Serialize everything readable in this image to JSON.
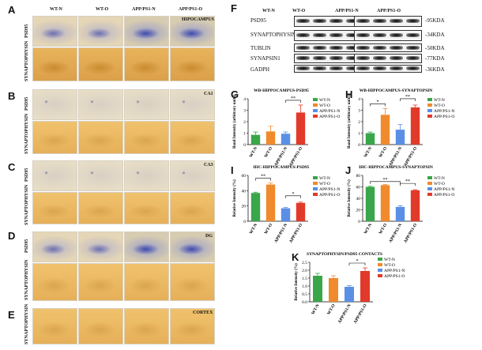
{
  "panel_letters": [
    "A",
    "B",
    "C",
    "D",
    "E",
    "F",
    "G",
    "H",
    "I",
    "J",
    "K"
  ],
  "ihc": {
    "columns": [
      "WT-N",
      "WT-O",
      "APP/PS1-N",
      "APP/PS1-O"
    ],
    "stain_psd95": "PSD95",
    "stain_syn": "SYNAPTOPHYSIN",
    "regions": {
      "A": "HIPOCAMPUS",
      "B": "CA1",
      "C": "CA3",
      "D": "DG",
      "E": "CORTEX"
    }
  },
  "western_blot": {
    "columns": [
      "WT-N",
      "WT-O",
      "APP/PS1-N",
      "APP/PS1-O"
    ],
    "proteins": [
      "PSD95",
      "SYNAPTOPHYSIN",
      "TUBLIN",
      "SYNAPSIN1",
      "GADPH"
    ],
    "sizes": [
      "-95KDA",
      "-34KDA",
      "-50KDA",
      "-77KDA",
      "-36KDA"
    ]
  },
  "legend": {
    "labels": [
      "WT-N",
      "WT-O",
      "APP/PS1-N",
      "APP/PS1-O"
    ],
    "colors": [
      "#3aa64a",
      "#f08a2c",
      "#5b8fe6",
      "#e23a2a"
    ]
  },
  "chart_data": [
    {
      "type": "bar",
      "title": "WB-HIPPOCAMPUS-PSD95",
      "ylabel": "Band Intensity (arbitrary units)",
      "categories": [
        "WT-N",
        "WT-O",
        "APP/PS1-N",
        "APP/PS1-O"
      ],
      "values": [
        0.85,
        1.15,
        0.95,
        2.8
      ],
      "errors": [
        0.25,
        0.45,
        0.15,
        0.65
      ],
      "ylim": [
        0,
        4
      ],
      "yticks": [
        "0",
        "1",
        "2",
        "3",
        "4"
      ],
      "significance": [
        {
          "from": 2,
          "to": 3,
          "label": "**"
        }
      ]
    },
    {
      "type": "bar",
      "title": "WB-HIPPOCAMPUS-SYNAPTOPSIN",
      "ylabel": "Band Intensity (arbitrary units)",
      "categories": [
        "WT-N",
        "WT-O",
        "APP/PS1-N",
        "APP/PS1-O"
      ],
      "values": [
        1.0,
        2.6,
        1.3,
        3.25
      ],
      "errors": [
        0.1,
        0.55,
        0.45,
        0.2
      ],
      "ylim": [
        0,
        4
      ],
      "yticks": [
        "0",
        "1",
        "2",
        "3",
        "4"
      ],
      "significance": [
        {
          "from": 0,
          "to": 1,
          "label": "*"
        },
        {
          "from": 2,
          "to": 3,
          "label": "**"
        }
      ]
    },
    {
      "type": "bar",
      "title": "IHC-HIPPOCAMPUS-PSD95",
      "ylabel": "Relative Intensity (%)",
      "categories": [
        "WT-N",
        "WT-O",
        "APP/PS1-N",
        "APP/PS1-O"
      ],
      "values": [
        37,
        48,
        17,
        24
      ],
      "errors": [
        1,
        2,
        1,
        1
      ],
      "ylim": [
        0,
        60
      ],
      "yticks": [
        "0",
        "20",
        "40",
        "60"
      ],
      "significance": [
        {
          "from": 0,
          "to": 1,
          "label": "**"
        },
        {
          "from": 2,
          "to": 3,
          "label": "*"
        }
      ]
    },
    {
      "type": "bar",
      "title": "IHC-HIPPOCAMPUS-SYNAPTOPSIN",
      "ylabel": "Relative Intensity (%)",
      "categories": [
        "WT-N",
        "WT-O",
        "APP/PS1-N",
        "APP/PS1-O"
      ],
      "values": [
        60,
        63,
        25,
        54
      ],
      "errors": [
        1,
        1,
        2,
        1
      ],
      "ylim": [
        0,
        80
      ],
      "yticks": [
        "0",
        "20",
        "40",
        "60",
        "80"
      ],
      "significance": [
        {
          "from": 0,
          "to": 2,
          "label": "**"
        },
        {
          "from": 2,
          "to": 3,
          "label": "**"
        }
      ]
    },
    {
      "type": "bar",
      "title": "SYNAPTOPHYSIN/PSD95 CONTACTS",
      "ylabel": "Relative Intensity (%)",
      "categories": [
        "WT-N",
        "WT-O",
        "APP/PS1-N",
        "APP/PS1-O"
      ],
      "values": [
        1.65,
        1.5,
        0.95,
        1.95
      ],
      "errors": [
        0.15,
        0.15,
        0.08,
        0.2
      ],
      "ylim": [
        0,
        2.5
      ],
      "yticks": [
        "0.0",
        "0.5",
        "1.0",
        "1.5",
        "2.0",
        "2.5"
      ],
      "significance": [
        {
          "from": 2,
          "to": 3,
          "label": "*"
        }
      ]
    }
  ]
}
